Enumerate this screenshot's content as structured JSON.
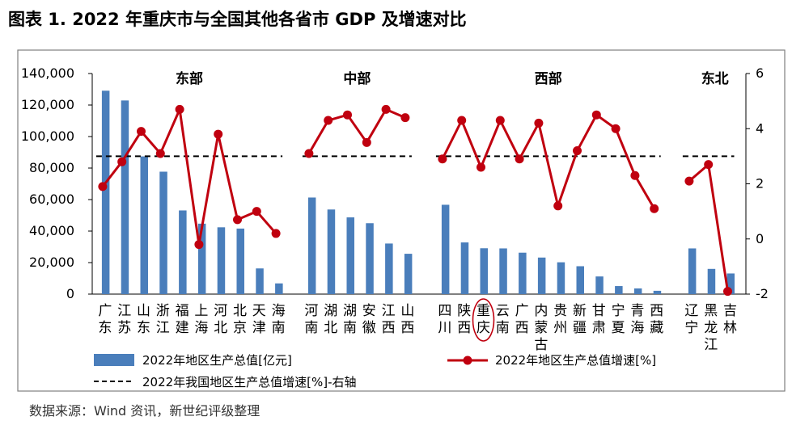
{
  "title": "图表 1. 2022 年重庆市与全国其他各省市 GDP 及增速对比",
  "source": "数据来源：Wind 资讯，新世纪评级整理",
  "colors": {
    "bar": "#4a7ebb",
    "line": "#c0000f",
    "avg": "#000000",
    "highlight": "#c0000f"
  },
  "chart_data": {
    "type": "bar+line",
    "title": "2022 年重庆市与全国其他各省市 GDP 及增速对比",
    "regions": [
      {
        "name": "东部",
        "provinces": [
          {
            "label": "广东",
            "gdp": 129100,
            "growth": 1.9
          },
          {
            "label": "江苏",
            "gdp": 122900,
            "growth": 2.8
          },
          {
            "label": "山东",
            "gdp": 87400,
            "growth": 3.9
          },
          {
            "label": "浙江",
            "gdp": 77700,
            "growth": 3.1
          },
          {
            "label": "福建",
            "gdp": 53100,
            "growth": 4.7
          },
          {
            "label": "上海",
            "gdp": 44700,
            "growth": -0.2
          },
          {
            "label": "河北",
            "gdp": 42400,
            "growth": 3.8
          },
          {
            "label": "北京",
            "gdp": 41600,
            "growth": 0.7
          },
          {
            "label": "天津",
            "gdp": 16300,
            "growth": 1.0
          },
          {
            "label": "海南",
            "gdp": 6800,
            "growth": 0.2
          }
        ]
      },
      {
        "name": "中部",
        "provinces": [
          {
            "label": "河南",
            "gdp": 61300,
            "growth": 3.1
          },
          {
            "label": "湖北",
            "gdp": 53700,
            "growth": 4.3
          },
          {
            "label": "湖南",
            "gdp": 48700,
            "growth": 4.5
          },
          {
            "label": "安徽",
            "gdp": 45000,
            "growth": 3.5
          },
          {
            "label": "江西",
            "gdp": 32100,
            "growth": 4.7
          },
          {
            "label": "山西",
            "gdp": 25600,
            "growth": 4.4
          }
        ]
      },
      {
        "name": "西部",
        "provinces": [
          {
            "label": "四川",
            "gdp": 56700,
            "growth": 2.9
          },
          {
            "label": "陕西",
            "gdp": 32800,
            "growth": 4.3
          },
          {
            "label": "重庆",
            "gdp": 29100,
            "growth": 2.6,
            "highlight": true
          },
          {
            "label": "云南",
            "gdp": 29000,
            "growth": 4.3
          },
          {
            "label": "广西",
            "gdp": 26300,
            "growth": 2.9
          },
          {
            "label": "内蒙古",
            "gdp": 23200,
            "growth": 4.2
          },
          {
            "label": "贵州",
            "gdp": 20200,
            "growth": 1.2
          },
          {
            "label": "新疆",
            "gdp": 17700,
            "growth": 3.2
          },
          {
            "label": "甘肃",
            "gdp": 11200,
            "growth": 4.5
          },
          {
            "label": "宁夏",
            "gdp": 5100,
            "growth": 4.0
          },
          {
            "label": "青海",
            "gdp": 3600,
            "growth": 2.3
          },
          {
            "label": "西藏",
            "gdp": 2100,
            "growth": 1.1
          }
        ]
      },
      {
        "name": "东北",
        "provinces": [
          {
            "label": "辽宁",
            "gdp": 29000,
            "growth": 2.1
          },
          {
            "label": "黑龙江",
            "gdp": 16000,
            "growth": 2.7
          },
          {
            "label": "吉林",
            "gdp": 13100,
            "growth": -1.9
          }
        ]
      }
    ],
    "national_growth": 3.0,
    "left_axis": {
      "min": 0,
      "max": 140000,
      "step": 20000,
      "ticks": [
        "0",
        "20,000",
        "40,000",
        "60,000",
        "80,000",
        "100,000",
        "120,000",
        "140,000"
      ]
    },
    "right_axis": {
      "min": -2,
      "max": 6,
      "step": 2,
      "ticks": [
        "-2",
        "0",
        "2",
        "4",
        "6"
      ]
    },
    "legend": {
      "bar": "2022年地区生产总值[亿元]",
      "line": "2022年地区生产总值增速[%]",
      "avg": "2022年我国地区生产总值增速[%]-右轴"
    }
  }
}
